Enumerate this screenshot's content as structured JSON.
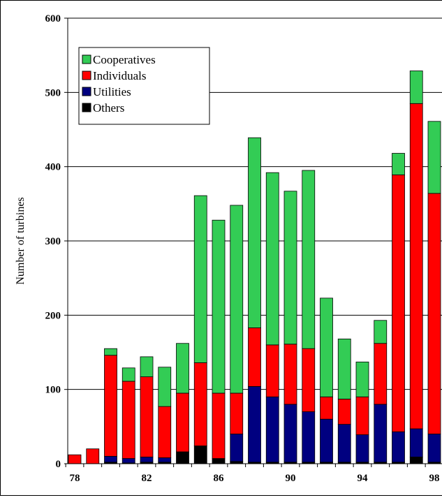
{
  "chart_data": {
    "type": "stacked-bar",
    "y_label": "Number of turbines",
    "categories": [
      "78",
      null,
      null,
      null,
      "82",
      null,
      null,
      null,
      "86",
      null,
      null,
      null,
      "90",
      null,
      null,
      null,
      "94",
      null,
      null,
      null,
      "98"
    ],
    "series": [
      {
        "name": "Cooperatives",
        "color": "#33cc55",
        "values": [
          0,
          0,
          9,
          18,
          27,
          53,
          67,
          225,
          233,
          253,
          256,
          232,
          206,
          240,
          133,
          81,
          47,
          31,
          29,
          44,
          97
        ]
      },
      {
        "name": "Individuals",
        "color": "#ff0000",
        "values": [
          12,
          20,
          136,
          104,
          108,
          69,
          79,
          112,
          88,
          55,
          79,
          70,
          81,
          85,
          30,
          34,
          51,
          82,
          346,
          438,
          324
        ]
      },
      {
        "name": "Utilities",
        "color": "#000080",
        "values": [
          0,
          0,
          8,
          6,
          7,
          6,
          0,
          0,
          0,
          37,
          102,
          88,
          78,
          68,
          58,
          51,
          37,
          78,
          41,
          38,
          38
        ]
      },
      {
        "name": "Others",
        "color": "#000000",
        "values": [
          0,
          0,
          2,
          1,
          2,
          2,
          16,
          24,
          7,
          3,
          2,
          2,
          2,
          2,
          2,
          2,
          2,
          2,
          2,
          9,
          2
        ]
      }
    ],
    "ylim": [
      0,
      600
    ],
    "yticks": [
      0,
      100,
      200,
      300,
      400,
      500,
      600
    ],
    "grid": true,
    "legend": "top-left"
  }
}
